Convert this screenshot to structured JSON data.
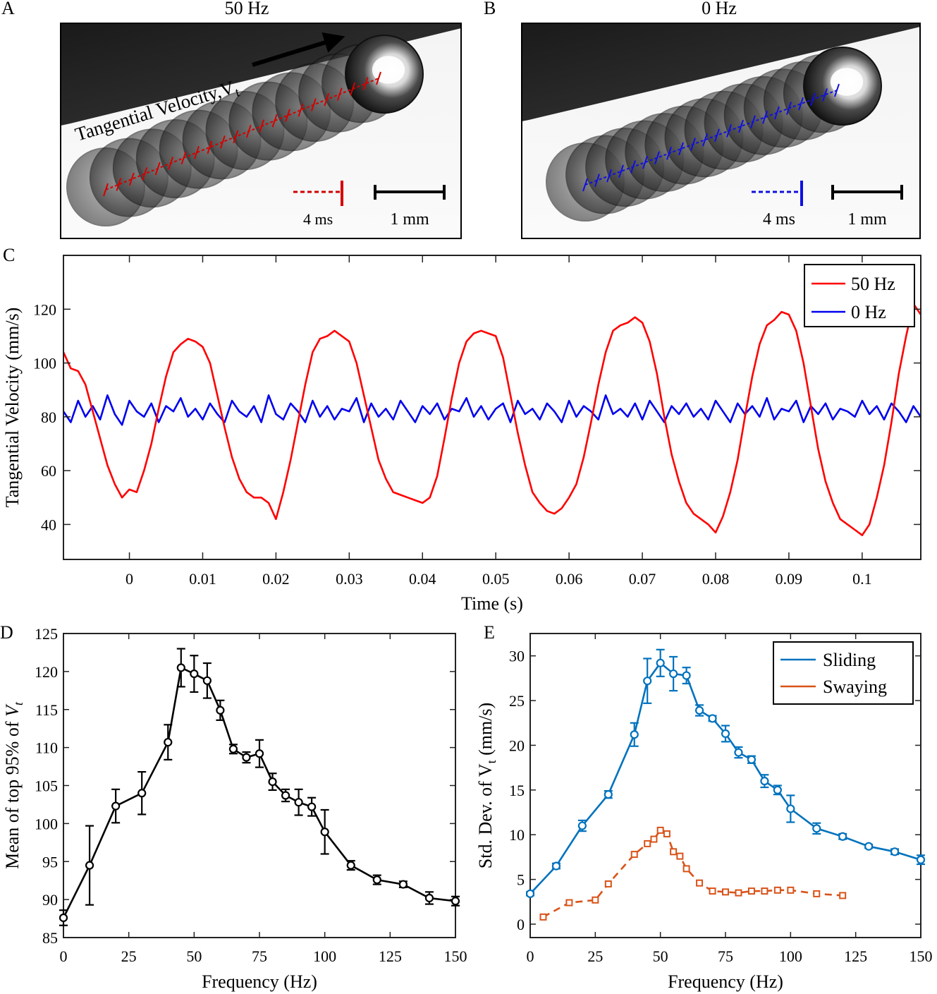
{
  "panels": {
    "A": {
      "letter": "A",
      "title": "50 Hz",
      "arrow_label": "Tangential Velocity,V",
      "arrow_sub": "t",
      "time_scale": "4 ms",
      "length_scale": "1 mm",
      "track_color": "#d40000"
    },
    "B": {
      "letter": "B",
      "title": "0 Hz",
      "time_scale": "4 ms",
      "length_scale": "1 mm",
      "track_color": "#1010e0"
    },
    "C": {
      "letter": "C"
    },
    "D": {
      "letter": "D"
    },
    "E": {
      "letter": "E"
    }
  },
  "chart_data": [
    {
      "id": "C",
      "type": "line",
      "xlabel": "Time (s)",
      "ylabel": "Tangential Velocity (mm/s)",
      "xlim": [
        -0.009,
        0.108
      ],
      "ylim": [
        27,
        140
      ],
      "xticks": [
        0,
        0.01,
        0.02,
        0.03,
        0.04,
        0.05,
        0.06,
        0.07,
        0.08,
        0.09,
        0.1
      ],
      "xtick_labels": [
        "0",
        "0.01",
        "0.02",
        "0.03",
        "0.04",
        "0.05",
        "0.06",
        "0.07",
        "0.08",
        "0.09",
        "0.1"
      ],
      "yticks": [
        40,
        60,
        80,
        100,
        120
      ],
      "legend_position": "top-right",
      "series": [
        {
          "name": "50 Hz",
          "color": "#ff0000",
          "x": [
            -0.009,
            -0.008,
            -0.007,
            -0.006,
            -0.005,
            -0.004,
            -0.003,
            -0.002,
            -0.001,
            0.0,
            0.001,
            0.002,
            0.003,
            0.004,
            0.005,
            0.006,
            0.007,
            0.008,
            0.009,
            0.01,
            0.011,
            0.012,
            0.013,
            0.014,
            0.015,
            0.016,
            0.017,
            0.018,
            0.019,
            0.02,
            0.021,
            0.022,
            0.023,
            0.024,
            0.025,
            0.026,
            0.027,
            0.028,
            0.029,
            0.03,
            0.031,
            0.032,
            0.033,
            0.034,
            0.035,
            0.036,
            0.037,
            0.038,
            0.039,
            0.04,
            0.041,
            0.042,
            0.043,
            0.044,
            0.045,
            0.046,
            0.047,
            0.048,
            0.049,
            0.05,
            0.051,
            0.052,
            0.053,
            0.054,
            0.055,
            0.056,
            0.057,
            0.058,
            0.059,
            0.06,
            0.061,
            0.062,
            0.063,
            0.064,
            0.065,
            0.066,
            0.067,
            0.068,
            0.069,
            0.07,
            0.071,
            0.072,
            0.073,
            0.074,
            0.075,
            0.076,
            0.077,
            0.078,
            0.079,
            0.08,
            0.081,
            0.082,
            0.083,
            0.084,
            0.085,
            0.086,
            0.087,
            0.088,
            0.089,
            0.09,
            0.091,
            0.092,
            0.093,
            0.094,
            0.095,
            0.096,
            0.097,
            0.098,
            0.099,
            0.1,
            0.101,
            0.102,
            0.103,
            0.104,
            0.105,
            0.106,
            0.107,
            0.108
          ],
          "values": [
            104,
            98,
            97,
            92,
            82,
            72,
            62,
            55,
            50,
            53,
            52,
            60,
            70,
            83,
            95,
            104,
            107,
            109,
            108,
            106,
            100,
            88,
            76,
            65,
            57,
            52,
            50,
            50,
            48,
            42,
            52,
            64,
            78,
            92,
            104,
            109,
            110,
            112,
            110,
            108,
            100,
            88,
            76,
            64,
            57,
            52,
            51,
            50,
            49,
            48,
            50,
            58,
            72,
            87,
            100,
            108,
            111,
            112,
            111,
            110,
            102,
            88,
            74,
            62,
            52,
            48,
            45,
            44,
            46,
            50,
            55,
            65,
            78,
            92,
            104,
            112,
            114,
            115,
            117,
            115,
            108,
            96,
            80,
            66,
            56,
            48,
            44,
            42,
            40,
            37,
            43,
            52,
            64,
            80,
            95,
            107,
            114,
            116,
            119,
            118,
            112,
            100,
            84,
            68,
            56,
            48,
            42,
            40,
            38,
            36,
            40,
            50,
            62,
            78,
            96,
            110,
            122,
            118
          ]
        },
        {
          "name": "0 Hz",
          "color": "#0000ee",
          "x": [
            -0.009,
            -0.008,
            -0.007,
            -0.006,
            -0.005,
            -0.004,
            -0.003,
            -0.002,
            -0.001,
            0.0,
            0.001,
            0.002,
            0.003,
            0.004,
            0.005,
            0.006,
            0.007,
            0.008,
            0.009,
            0.01,
            0.011,
            0.012,
            0.013,
            0.014,
            0.015,
            0.016,
            0.017,
            0.018,
            0.019,
            0.02,
            0.021,
            0.022,
            0.023,
            0.024,
            0.025,
            0.026,
            0.027,
            0.028,
            0.029,
            0.03,
            0.031,
            0.032,
            0.033,
            0.034,
            0.035,
            0.036,
            0.037,
            0.038,
            0.039,
            0.04,
            0.041,
            0.042,
            0.043,
            0.044,
            0.045,
            0.046,
            0.047,
            0.048,
            0.049,
            0.05,
            0.051,
            0.052,
            0.053,
            0.054,
            0.055,
            0.056,
            0.057,
            0.058,
            0.059,
            0.06,
            0.061,
            0.062,
            0.063,
            0.064,
            0.065,
            0.066,
            0.067,
            0.068,
            0.069,
            0.07,
            0.071,
            0.072,
            0.073,
            0.074,
            0.075,
            0.076,
            0.077,
            0.078,
            0.079,
            0.08,
            0.081,
            0.082,
            0.083,
            0.084,
            0.085,
            0.086,
            0.087,
            0.088,
            0.089,
            0.09,
            0.091,
            0.092,
            0.093,
            0.094,
            0.095,
            0.096,
            0.097,
            0.098,
            0.099,
            0.1,
            0.101,
            0.102,
            0.103,
            0.104,
            0.105,
            0.106,
            0.107,
            0.108
          ],
          "values": [
            82,
            78,
            86,
            80,
            84,
            79,
            88,
            81,
            77,
            86,
            82,
            80,
            85,
            78,
            84,
            82,
            87,
            80,
            83,
            79,
            85,
            81,
            78,
            86,
            82,
            80,
            84,
            78,
            88,
            81,
            79,
            85,
            82,
            78,
            86,
            80,
            84,
            79,
            83,
            82,
            87,
            78,
            85,
            80,
            83,
            79,
            86,
            82,
            78,
            84,
            81,
            85,
            79,
            83,
            82,
            87,
            80,
            84,
            79,
            83,
            85,
            78,
            86,
            81,
            83,
            79,
            85,
            82,
            78,
            86,
            80,
            84,
            82,
            79,
            88,
            81,
            83,
            80,
            85,
            79,
            86,
            82,
            78,
            84,
            81,
            85,
            80,
            83,
            79,
            86,
            82,
            78,
            85,
            81,
            84,
            80,
            87,
            79,
            83,
            82,
            86,
            78,
            84,
            81,
            85,
            79,
            83,
            82,
            80,
            86,
            81,
            84,
            79,
            85,
            82,
            78,
            84,
            80
          ]
        }
      ]
    },
    {
      "id": "D",
      "type": "line",
      "xlabel": "Frequency (Hz)",
      "ylabel": "Mean of top 95% of ",
      "ylabel_var": "V",
      "ylabel_sub": "t",
      "xlim": [
        0,
        150
      ],
      "ylim": [
        85,
        125
      ],
      "xticks": [
        0,
        25,
        50,
        75,
        100,
        125,
        150
      ],
      "yticks": [
        85,
        90,
        95,
        100,
        105,
        110,
        115,
        120,
        125
      ],
      "series": [
        {
          "color": "#000000",
          "marker": "circle",
          "x": [
            0,
            10,
            20,
            30,
            40,
            45,
            50,
            55,
            60,
            65,
            70,
            75,
            80,
            85,
            90,
            95,
            100,
            110,
            120,
            130,
            140,
            150
          ],
          "values": [
            87.6,
            94.5,
            102.3,
            104.0,
            110.7,
            120.5,
            119.7,
            118.8,
            114.9,
            109.8,
            108.7,
            109.2,
            105.5,
            103.7,
            102.8,
            102.2,
            98.9,
            94.5,
            92.6,
            92.0,
            90.2,
            89.8
          ],
          "error": [
            1.0,
            5.2,
            2.2,
            2.8,
            2.3,
            2.5,
            2.4,
            2.3,
            1.3,
            0.6,
            0.7,
            1.8,
            1.1,
            0.8,
            1.7,
            1.2,
            2.9,
            0.6,
            0.6,
            0.4,
            0.8,
            0.6
          ]
        }
      ]
    },
    {
      "id": "E",
      "type": "line",
      "xlabel": "Frequency (Hz)",
      "ylabel": "Std. Dev. of V",
      "ylabel_sub": "t",
      "ylabel_tail": " (mm/s)",
      "xlim": [
        0,
        150
      ],
      "ylim": [
        -1.5,
        32.5
      ],
      "xticks": [
        0,
        25,
        50,
        75,
        100,
        125,
        150
      ],
      "yticks": [
        0,
        5,
        10,
        15,
        20,
        25,
        30
      ],
      "legend_position": "top-right",
      "series": [
        {
          "name": "Sliding",
          "color": "#0072bd",
          "marker": "circle",
          "x": [
            0,
            10,
            20,
            30,
            40,
            45,
            50,
            55,
            60,
            65,
            70,
            75,
            80,
            85,
            90,
            95,
            100,
            110,
            120,
            130,
            140,
            150
          ],
          "values": [
            3.4,
            6.5,
            11.0,
            14.5,
            21.2,
            27.2,
            29.2,
            28.0,
            27.8,
            23.9,
            23.0,
            21.3,
            19.2,
            18.4,
            16.0,
            15.0,
            12.9,
            10.7,
            9.8,
            8.7,
            8.1,
            7.2
          ],
          "error": [
            0.2,
            0.3,
            0.6,
            0.4,
            1.3,
            2.5,
            1.5,
            1.9,
            0.9,
            0.6,
            0.3,
            0.9,
            0.6,
            0.4,
            0.7,
            0.5,
            1.5,
            0.6,
            0.3,
            0.2,
            0.3,
            0.5
          ]
        },
        {
          "name": "Swaying",
          "color": "#d95319",
          "marker": "square",
          "dashed": true,
          "x": [
            5,
            15,
            25,
            30,
            40,
            45,
            47.5,
            50,
            52.5,
            55,
            57.5,
            60,
            65,
            70,
            75,
            80,
            85,
            90,
            95,
            100,
            110,
            120
          ],
          "values": [
            0.8,
            2.4,
            2.7,
            4.5,
            7.8,
            9.0,
            9.5,
            10.5,
            10.1,
            8.1,
            7.6,
            6.2,
            4.6,
            3.7,
            3.6,
            3.5,
            3.7,
            3.7,
            3.8,
            3.8,
            3.4,
            3.2
          ]
        }
      ]
    }
  ]
}
